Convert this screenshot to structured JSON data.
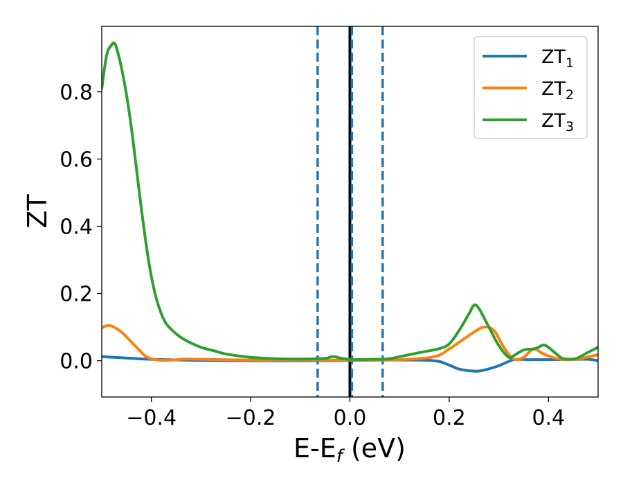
{
  "chart_data": {
    "type": "line",
    "xlabel_main": "E-E",
    "xlabel_sub": "f",
    "xlabel_unit": " (eV)",
    "ylabel": "ZT",
    "xlim": [
      -0.5,
      0.5
    ],
    "ylim": [
      -0.108,
      0.995
    ],
    "x_ticks": [
      -0.4,
      -0.2,
      0.0,
      0.2,
      0.4
    ],
    "x_tick_labels": [
      "−0.4",
      "−0.2",
      "0.0",
      "0.2",
      "0.4"
    ],
    "y_ticks": [
      0.0,
      0.2,
      0.4,
      0.6,
      0.8
    ],
    "y_tick_labels": [
      "0.0",
      "0.2",
      "0.4",
      "0.6",
      "0.8"
    ],
    "grid": false,
    "legend_position": "top-right",
    "vlines": [
      {
        "x": -0.065,
        "style": "dashed",
        "color": "#1f77b4"
      },
      {
        "x": 0.0,
        "style": "solid",
        "color": "#000000"
      },
      {
        "x": 0.004,
        "style": "dashed",
        "color": "#1f77b4"
      },
      {
        "x": 0.066,
        "style": "dashed",
        "color": "#1f77b4"
      }
    ],
    "series": [
      {
        "name": "ZT",
        "subscript": "1",
        "color": "#1f77b4",
        "x": [
          -0.5,
          -0.45,
          -0.4,
          -0.3,
          -0.2,
          -0.1,
          0.0,
          0.1,
          0.17,
          0.2,
          0.22,
          0.25,
          0.27,
          0.3,
          0.33,
          0.36,
          0.4,
          0.45,
          0.48,
          0.5
        ],
        "y": [
          0.012,
          0.008,
          0.004,
          0.001,
          0.0,
          0.0,
          0.001,
          0.002,
          0.0,
          -0.013,
          -0.025,
          -0.031,
          -0.028,
          -0.015,
          0.003,
          0.003,
          0.003,
          0.004,
          0.004,
          0.0
        ]
      },
      {
        "name": "ZT",
        "subscript": "2",
        "color": "#ff7f0e",
        "x": [
          -0.5,
          -0.49,
          -0.48,
          -0.46,
          -0.43,
          -0.41,
          -0.39,
          -0.37,
          -0.33,
          -0.3,
          -0.2,
          -0.1,
          0.0,
          0.1,
          0.17,
          0.2,
          0.23,
          0.25,
          0.27,
          0.29,
          0.31,
          0.33,
          0.35,
          0.37,
          0.39,
          0.42,
          0.45,
          0.47,
          0.5
        ],
        "y": [
          0.098,
          0.104,
          0.103,
          0.085,
          0.04,
          0.012,
          0.003,
          0.001,
          0.005,
          0.004,
          0.002,
          0.002,
          0.002,
          0.003,
          0.012,
          0.035,
          0.065,
          0.085,
          0.1,
          0.09,
          0.04,
          0.005,
          0.01,
          0.035,
          0.02,
          0.005,
          0.003,
          0.008,
          0.018
        ]
      },
      {
        "name": "ZT",
        "subscript": "3",
        "color": "#2ca02c",
        "x": [
          -0.5,
          -0.49,
          -0.48,
          -0.475,
          -0.47,
          -0.46,
          -0.45,
          -0.44,
          -0.43,
          -0.42,
          -0.41,
          -0.4,
          -0.39,
          -0.38,
          -0.37,
          -0.35,
          -0.33,
          -0.3,
          -0.27,
          -0.25,
          -0.2,
          -0.15,
          -0.1,
          -0.05,
          -0.04,
          -0.03,
          -0.02,
          0.0,
          0.05,
          0.08,
          0.1,
          0.14,
          0.18,
          0.2,
          0.22,
          0.24,
          0.25,
          0.26,
          0.28,
          0.3,
          0.32,
          0.33,
          0.35,
          0.37,
          0.38,
          0.39,
          0.4,
          0.42,
          0.43,
          0.45,
          0.46,
          0.48,
          0.5
        ],
        "y": [
          0.81,
          0.91,
          0.94,
          0.945,
          0.93,
          0.87,
          0.79,
          0.69,
          0.57,
          0.45,
          0.34,
          0.25,
          0.185,
          0.14,
          0.11,
          0.08,
          0.06,
          0.04,
          0.028,
          0.02,
          0.01,
          0.006,
          0.005,
          0.007,
          0.011,
          0.012,
          0.008,
          0.004,
          0.004,
          0.006,
          0.012,
          0.024,
          0.036,
          0.05,
          0.09,
          0.14,
          0.165,
          0.155,
          0.1,
          0.045,
          0.01,
          0.015,
          0.032,
          0.035,
          0.04,
          0.047,
          0.04,
          0.015,
          0.006,
          0.005,
          0.009,
          0.025,
          0.04
        ]
      }
    ]
  }
}
